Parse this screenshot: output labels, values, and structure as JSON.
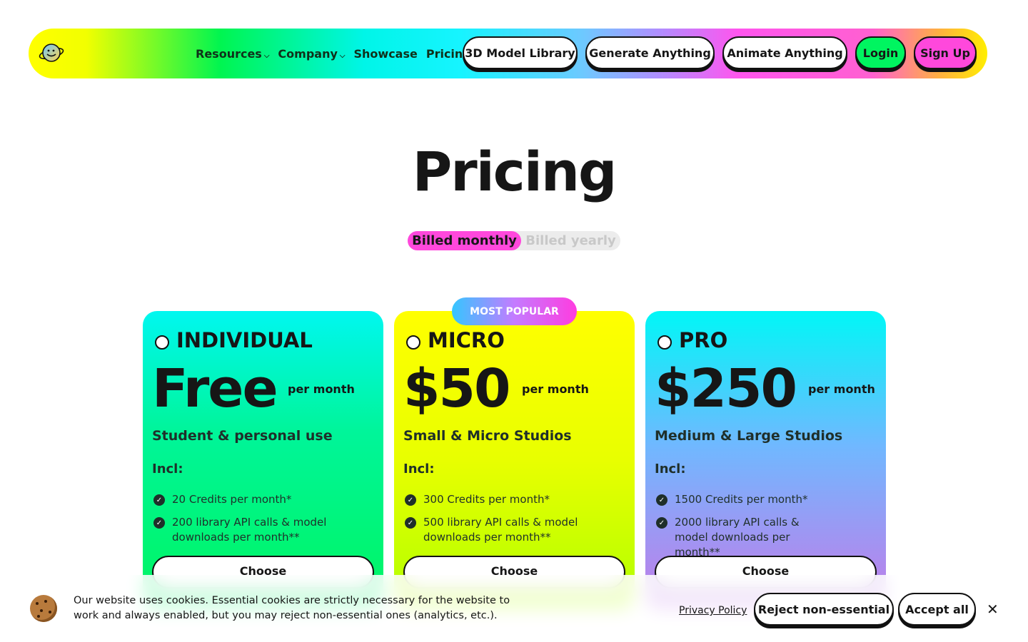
{
  "nav": {
    "links": [
      {
        "label": "Resources",
        "dropdown": true
      },
      {
        "label": "Company",
        "dropdown": true
      },
      {
        "label": "Showcase"
      },
      {
        "label": "Pricing"
      }
    ],
    "buttons": [
      "3D Model Library",
      "Generate Anything",
      "Animate Anything"
    ],
    "login": "Login",
    "signup": "Sign Up"
  },
  "page": {
    "title": "Pricing",
    "billing": {
      "monthly": "Billed monthly",
      "yearly": "Billed yearly",
      "selected": "monthly"
    },
    "badge": "MOST POPULAR"
  },
  "plans": [
    {
      "tier": "INDIVIDUAL",
      "price": "Free",
      "per": "per month",
      "subtitle": "Student & personal use",
      "incl": "Incl:",
      "features": [
        "20 Credits per month*",
        "200 library API calls & model downloads per month**"
      ],
      "cta": "Choose"
    },
    {
      "tier": "MICRO",
      "price": "$50",
      "per": "per month",
      "subtitle": "Small & Micro Studios",
      "incl": "Incl:",
      "features": [
        "300 Credits per month*",
        "500 library API calls & model downloads per month**"
      ],
      "cta": "Choose"
    },
    {
      "tier": "PRO",
      "price": "$250",
      "per": "per month",
      "subtitle": "Medium & Large Studios",
      "incl": "Incl:",
      "features": [
        "1500 Credits per month*",
        "2000 library API calls & model downloads per month**"
      ],
      "cta": "Choose"
    }
  ],
  "cookie": {
    "text": "Our website uses cookies. Essential cookies are strictly necessary for the website to work and always enabled, but you may reject non-essential ones (analytics, etc.).",
    "privacy": "Privacy Policy",
    "reject": "Reject non-essential",
    "accept": "Accept all"
  },
  "colors": {
    "login": "#00f560",
    "signup": "#ff48dc",
    "toggle_active": "#ff48dc"
  }
}
